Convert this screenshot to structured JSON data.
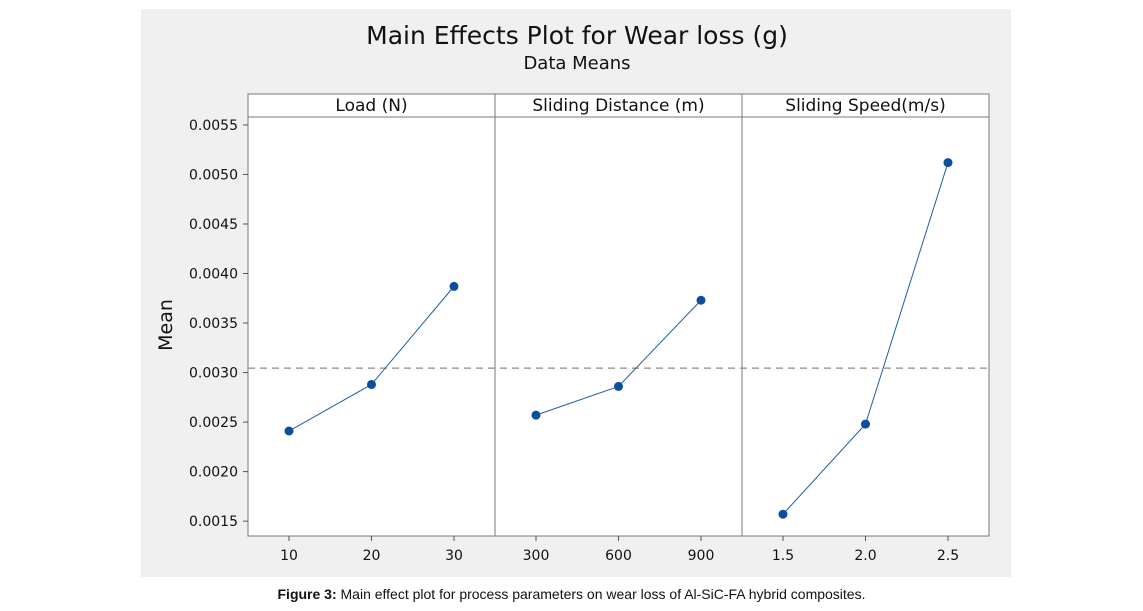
{
  "chart_data": {
    "type": "line",
    "title": "Main Effects Plot for Wear loss (g)",
    "subtitle": "Data Means",
    "ylabel": "Mean",
    "ylim": [
      0.00135,
      0.00558
    ],
    "yticks": [
      "0.0015",
      "0.0020",
      "0.0025",
      "0.0030",
      "0.0035",
      "0.0040",
      "0.0045",
      "0.0050",
      "0.0055"
    ],
    "ytick_values": [
      0.0015,
      0.002,
      0.0025,
      0.003,
      0.0035,
      0.004,
      0.0045,
      0.005,
      0.0055
    ],
    "reference_mean": 0.003045,
    "grid": false,
    "line_color": "#1f5fa5",
    "marker_color": "#0b4f9c",
    "ref_line_color": "#8c8c8c",
    "panels": [
      {
        "name": "Load (N)",
        "categories": [
          "10",
          "20",
          "30"
        ],
        "values": [
          0.00241,
          0.00288,
          0.00387
        ]
      },
      {
        "name": "Sliding Distance (m)",
        "categories": [
          "300",
          "600",
          "900"
        ],
        "values": [
          0.00257,
          0.00286,
          0.00373
        ]
      },
      {
        "name": "Sliding Speed(m/s)",
        "categories": [
          "1.5",
          "2.0",
          "2.5"
        ],
        "values": [
          0.00157,
          0.00248,
          0.00512
        ]
      }
    ]
  },
  "caption": {
    "label": "Figure 3:",
    "text": " Main effect plot for process parameters on wear loss of Al-SiC-FA hybrid composites."
  }
}
